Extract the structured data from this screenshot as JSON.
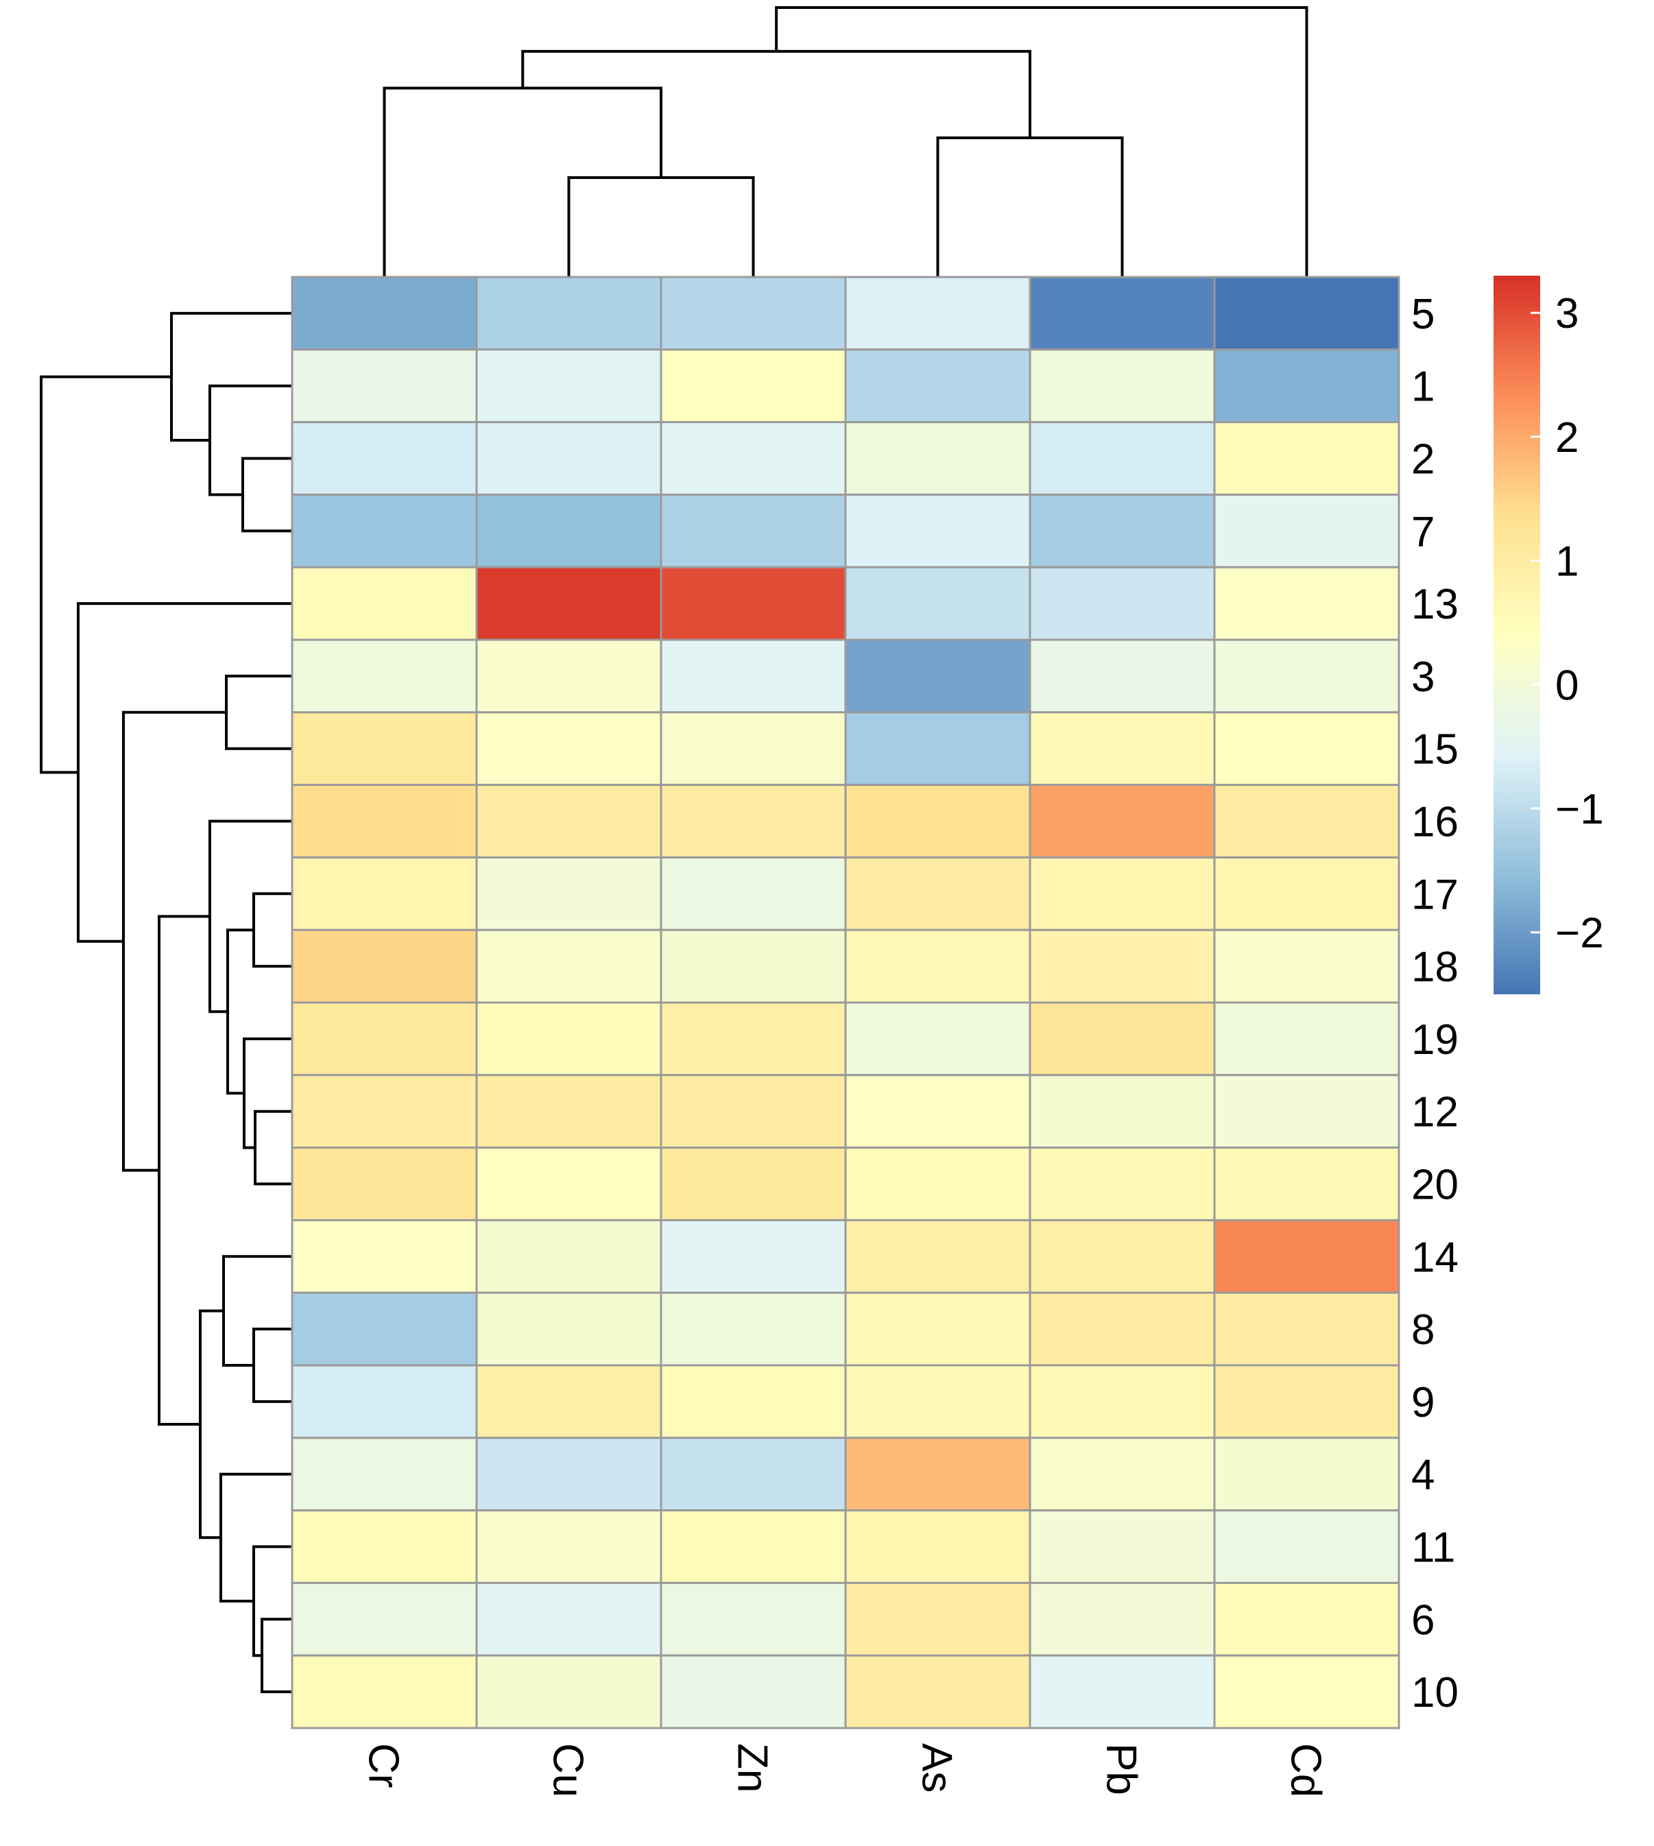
{
  "chart_data": {
    "type": "heatmap",
    "title": "",
    "columns": [
      "Cr",
      "Cu",
      "Zn",
      "As",
      "Pb",
      "Cd"
    ],
    "rows": [
      "5",
      "1",
      "2",
      "7",
      "13",
      "3",
      "15",
      "16",
      "17",
      "18",
      "19",
      "12",
      "20",
      "14",
      "8",
      "9",
      "4",
      "11",
      "6",
      "10"
    ],
    "values": [
      [
        -1.8,
        -1.2,
        -1.1,
        -0.6,
        -2.3,
        -2.5
      ],
      [
        -0.3,
        -0.5,
        0.4,
        -1.1,
        -0.1,
        -1.7
      ],
      [
        -0.7,
        -0.6,
        -0.5,
        -0.1,
        -0.7,
        0.5
      ],
      [
        -1.4,
        -1.5,
        -1.2,
        -0.6,
        -1.3,
        -0.4
      ],
      [
        0.5,
        3.2,
        3.0,
        -0.9,
        -0.8,
        0.3
      ],
      [
        -0.1,
        0.2,
        -0.5,
        -1.9,
        -0.3,
        -0.1
      ],
      [
        1.1,
        0.3,
        0.2,
        -1.3,
        0.6,
        0.4
      ],
      [
        1.4,
        1.0,
        1.0,
        1.3,
        2.1,
        1.0
      ],
      [
        0.7,
        0.0,
        -0.2,
        1.0,
        0.7,
        0.7
      ],
      [
        1.5,
        0.2,
        0.1,
        0.6,
        0.8,
        0.2
      ],
      [
        1.1,
        0.5,
        0.9,
        -0.1,
        1.2,
        -0.1
      ],
      [
        1.0,
        1.0,
        1.0,
        0.3,
        0.1,
        0.0
      ],
      [
        1.2,
        0.4,
        1.1,
        0.5,
        0.6,
        0.6
      ],
      [
        0.3,
        0.1,
        -0.5,
        0.9,
        0.9,
        2.4
      ],
      [
        -1.3,
        0.1,
        -0.1,
        0.6,
        1.0,
        1.0
      ],
      [
        -0.7,
        0.9,
        0.5,
        0.6,
        0.6,
        1.0
      ],
      [
        -0.2,
        -0.8,
        -0.9,
        1.8,
        0.2,
        0.1
      ],
      [
        0.5,
        0.2,
        0.5,
        0.7,
        0.0,
        -0.2
      ],
      [
        -0.2,
        -0.5,
        -0.2,
        1.0,
        0.0,
        0.5
      ],
      [
        0.5,
        0.1,
        -0.3,
        1.0,
        -0.5,
        0.4
      ]
    ],
    "legend": {
      "ticks": [
        3,
        2,
        1,
        0,
        -1,
        -2
      ],
      "tick_labels": [
        "3",
        "2",
        "1",
        "0",
        "−1",
        "−2"
      ],
      "range": [
        -2.5,
        3.3
      ],
      "colors": [
        "#4575b4",
        "#91bfdb",
        "#e0f3f8",
        "#ffffbf",
        "#fee090",
        "#fc8d59",
        "#d73027"
      ]
    },
    "column_dendrogram": {
      "leaf_order": [
        "Cr",
        "Cu",
        "Zn",
        "As",
        "Pb",
        "Cd"
      ],
      "merges": [
        [
          1,
          2,
          1.0
        ],
        [
          3,
          4,
          1.4
        ],
        [
          0,
          "Cu+Zn",
          1.6
        ],
        [
          "Cr+Cu+Zn",
          "As+Pb",
          2.0
        ],
        [
          "Cr..Pb",
          5,
          2.35
        ]
      ]
    },
    "row_dendrogram": {
      "leaf_order": [
        "5",
        "1",
        "2",
        "7",
        "13",
        "3",
        "15",
        "16",
        "17",
        "18",
        "19",
        "12",
        "20",
        "14",
        "8",
        "9",
        "4",
        "11",
        "6",
        "10"
      ]
    },
    "xlabel": "",
    "ylabel": ""
  }
}
